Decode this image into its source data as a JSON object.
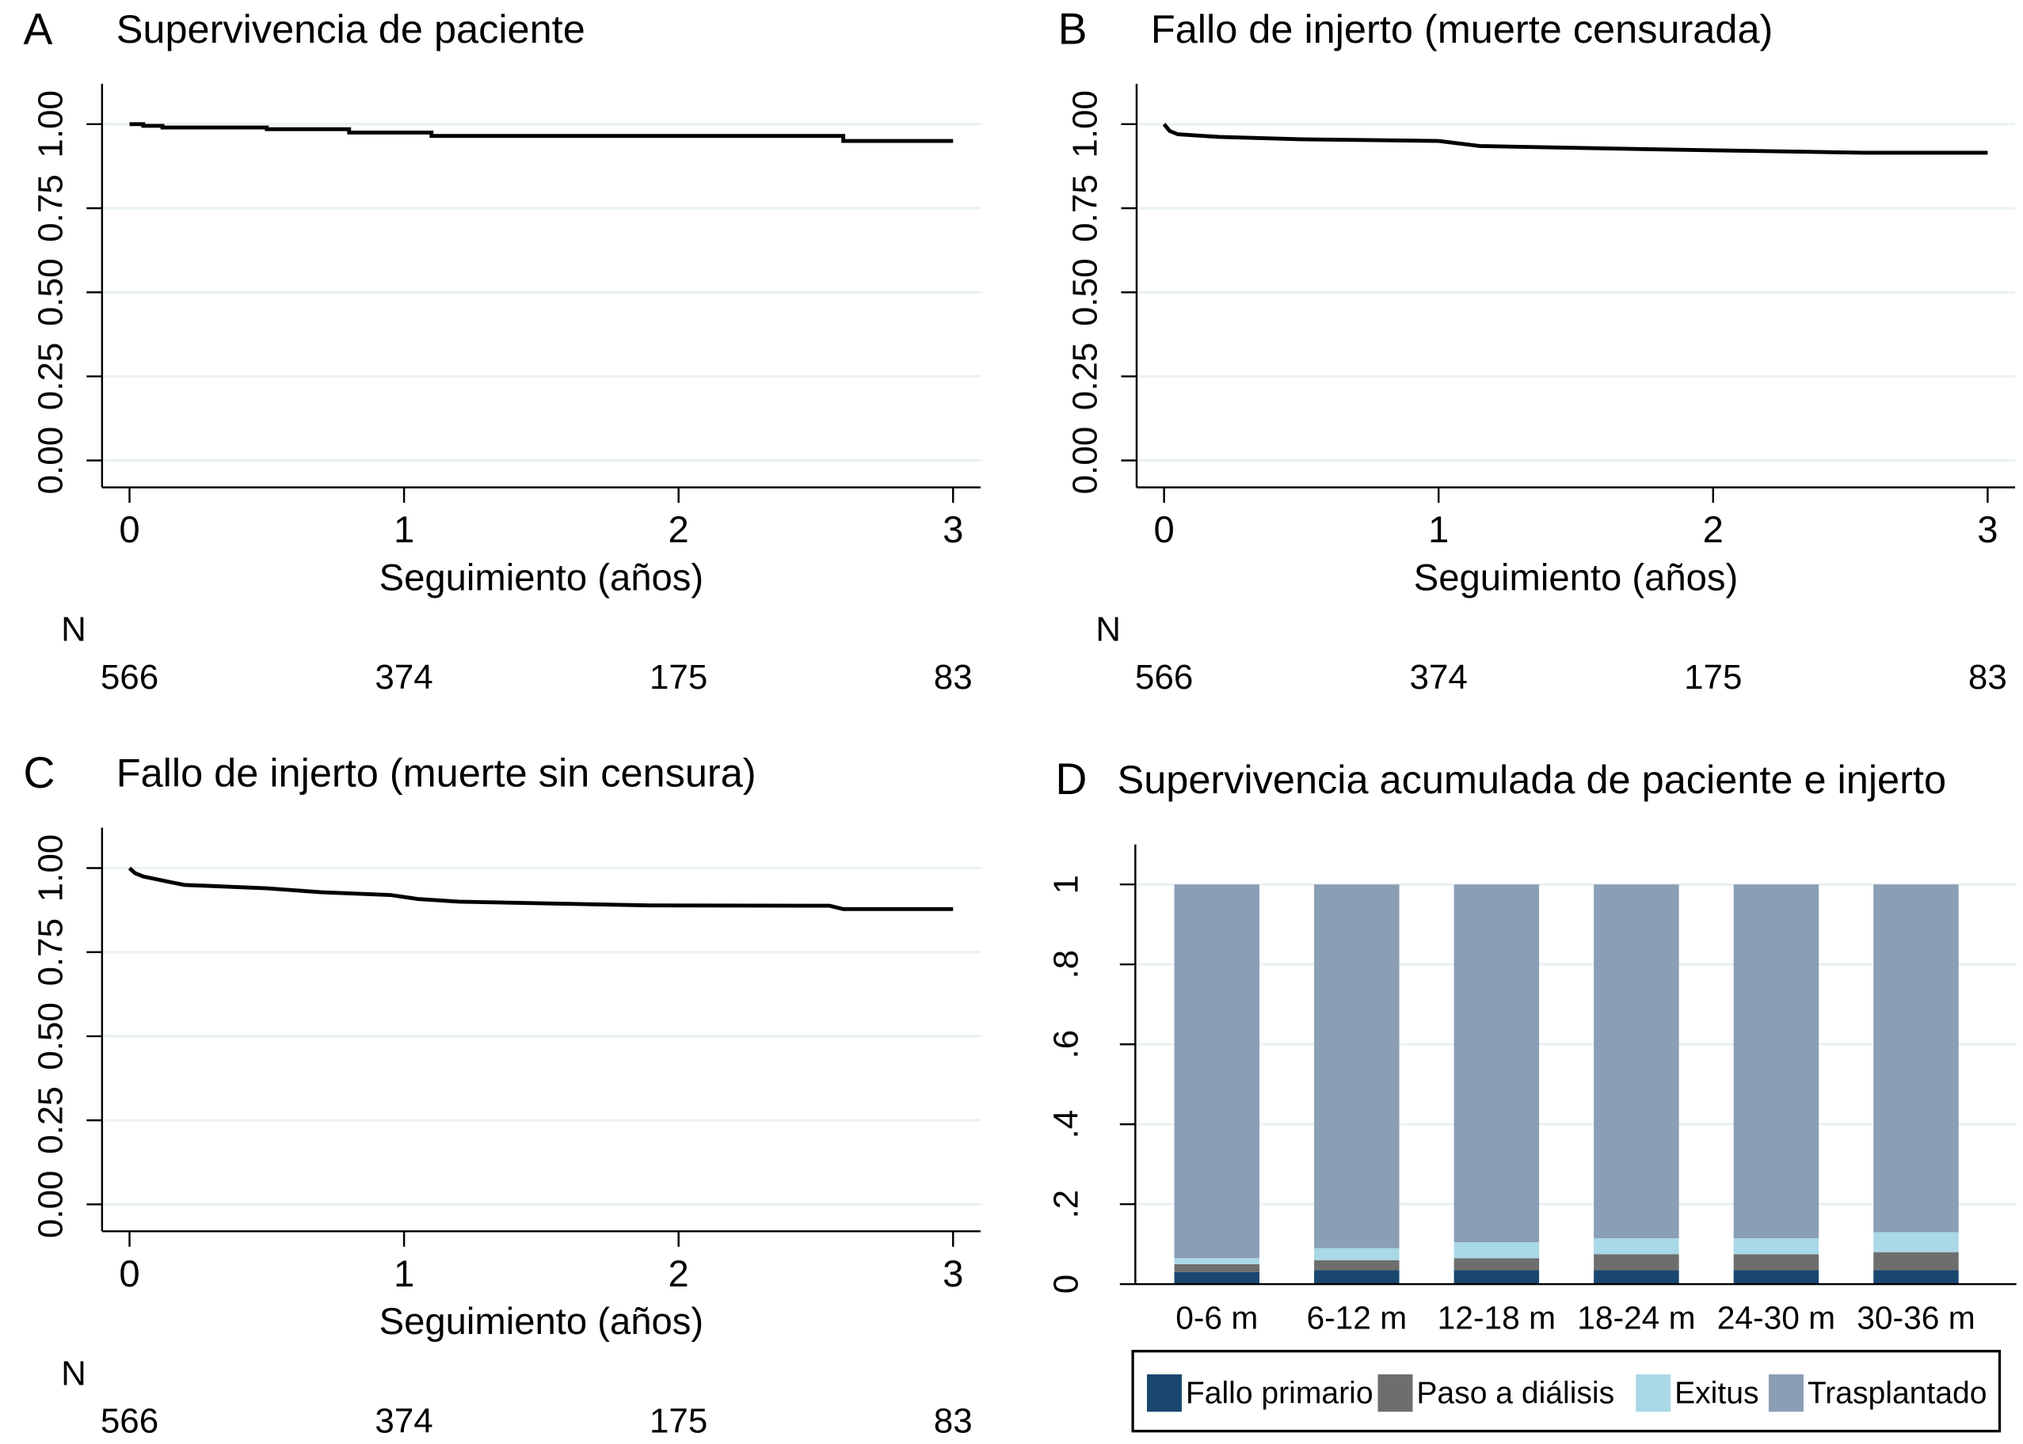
{
  "chart_data": [
    {
      "type": "line",
      "panel_label": "A",
      "title": "Supervivencia de paciente",
      "x_label": "Seguimiento (años)",
      "x": [
        0,
        0.05,
        0.05,
        0.12,
        0.12,
        0.5,
        0.5,
        0.8,
        0.8,
        1.1,
        1.1,
        2.6,
        2.6,
        3
      ],
      "values": [
        1,
        1,
        0.995,
        0.995,
        0.99,
        0.99,
        0.985,
        0.985,
        0.975,
        0.975,
        0.965,
        0.965,
        0.95,
        0.95
      ],
      "color": "#000000",
      "xlim": [
        -0.1,
        3.1
      ],
      "xticks": [
        0,
        1,
        2,
        3
      ],
      "ylim": [
        -0.08,
        1.12
      ],
      "yticks": [
        {
          "value": 0,
          "label": "0.00"
        },
        {
          "value": 0.25,
          "label": "0.25"
        },
        {
          "value": 0.5,
          "label": "0.50"
        },
        {
          "value": 0.75,
          "label": "0.75"
        },
        {
          "value": 1,
          "label": "1.00"
        }
      ],
      "grid": true,
      "at_risk": {
        "label": "N",
        "values": [
          566,
          374,
          175,
          83
        ]
      }
    },
    {
      "type": "line",
      "panel_label": "B",
      "title": "Fallo de injerto (muerte censurada)",
      "x_label": "Seguimiento (años)",
      "x": [
        0,
        0.02,
        0.05,
        0.2,
        0.5,
        1.0,
        1.15,
        1.8,
        2.55,
        3
      ],
      "values": [
        1,
        0.98,
        0.97,
        0.962,
        0.955,
        0.95,
        0.935,
        0.925,
        0.915,
        0.915
      ],
      "color": "#000000",
      "xlim": [
        -0.1,
        3.1
      ],
      "xticks": [
        0,
        1,
        2,
        3
      ],
      "ylim": [
        -0.08,
        1.12
      ],
      "yticks": [
        {
          "value": 0,
          "label": "0.00"
        },
        {
          "value": 0.25,
          "label": "0.25"
        },
        {
          "value": 0.5,
          "label": "0.50"
        },
        {
          "value": 0.75,
          "label": "0.75"
        },
        {
          "value": 1,
          "label": "1.00"
        }
      ],
      "grid": true,
      "at_risk": {
        "label": "N",
        "values": [
          566,
          374,
          175,
          83
        ]
      }
    },
    {
      "type": "line",
      "panel_label": "C",
      "title": "Fallo de injerto (muerte sin censura)",
      "x_label": "Seguimiento (años)",
      "x": [
        0,
        0.02,
        0.05,
        0.15,
        0.2,
        0.5,
        0.7,
        0.95,
        1.05,
        1.2,
        1.9,
        2.55,
        2.6,
        3
      ],
      "values": [
        1,
        0.985,
        0.975,
        0.958,
        0.95,
        0.94,
        0.928,
        0.92,
        0.908,
        0.9,
        0.889,
        0.888,
        0.878,
        0.878
      ],
      "color": "#000000",
      "xlim": [
        -0.1,
        3.1
      ],
      "xticks": [
        0,
        1,
        2,
        3
      ],
      "ylim": [
        -0.08,
        1.12
      ],
      "yticks": [
        {
          "value": 0,
          "label": "0.00"
        },
        {
          "value": 0.25,
          "label": "0.25"
        },
        {
          "value": 0.5,
          "label": "0.50"
        },
        {
          "value": 0.75,
          "label": "0.75"
        },
        {
          "value": 1,
          "label": "1.00"
        }
      ],
      "grid": true,
      "at_risk": {
        "label": "N",
        "values": [
          566,
          374,
          175,
          83
        ]
      }
    },
    {
      "type": "stacked_bar",
      "panel_label": "D",
      "title": "Supervivencia acumulada de paciente e injerto",
      "categories": [
        "0-6 m",
        "6-12 m",
        "12-18 m",
        "18-24 m",
        "24-30 m",
        "30-36 m"
      ],
      "series": [
        {
          "name": "Fallo primario",
          "color": "#1a476f",
          "values": [
            0.03,
            0.035,
            0.035,
            0.035,
            0.035,
            0.035
          ]
        },
        {
          "name": "Paso a diálisis",
          "color": "#6e6e6e",
          "values": [
            0.02,
            0.025,
            0.03,
            0.04,
            0.04,
            0.045
          ]
        },
        {
          "name": "Exitus",
          "color": "#a9d8e6",
          "values": [
            0.015,
            0.03,
            0.04,
            0.04,
            0.04,
            0.05
          ]
        },
        {
          "name": "Trasplantado",
          "color": "#8a9eb5",
          "values": [
            0.935,
            0.91,
            0.895,
            0.885,
            0.885,
            0.87
          ]
        }
      ],
      "ylim": [
        0,
        1.1
      ],
      "yticks": [
        0,
        {
          "value": 0.2,
          "label": ".2"
        },
        {
          "value": 0.4,
          "label": ".4"
        },
        {
          "value": 0.6,
          "label": ".6"
        },
        {
          "value": 0.8,
          "label": ".8"
        },
        1
      ],
      "grid": true,
      "legend": "bottom"
    }
  ]
}
